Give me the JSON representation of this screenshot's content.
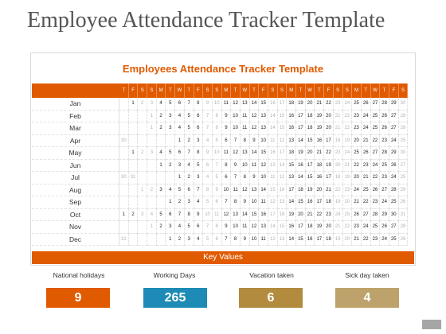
{
  "page": {
    "title": "Employee Attendance Tracker Template"
  },
  "card": {
    "title": "Employees Attendance Tracker Template",
    "key_label": "Key  Values"
  },
  "weekday_headers": [
    "S",
    "M",
    "T",
    "W",
    "T",
    "F",
    "S",
    "S",
    "M",
    "T",
    "W",
    "T",
    "F",
    "S",
    "S",
    "M",
    "T",
    "W",
    "T",
    "F",
    "S",
    "S",
    "M",
    "T",
    "W",
    "T",
    "F",
    "S",
    "S",
    "M",
    "T",
    "W",
    "T",
    "F",
    "S"
  ],
  "months": [
    {
      "name": "Jan",
      "start": 1,
      "days": [
        1,
        2,
        3,
        4,
        5,
        6,
        7,
        8,
        9,
        10,
        11,
        12,
        13,
        14,
        15,
        16,
        17,
        18,
        19,
        20,
        21,
        22,
        23,
        24,
        25,
        26,
        27,
        28,
        29,
        30,
        31
      ]
    },
    {
      "name": "Feb",
      "start": 3,
      "days": [
        1,
        2,
        3,
        4,
        5,
        6,
        7,
        8,
        9,
        10,
        11,
        12,
        13,
        14,
        15,
        16,
        17,
        18,
        19,
        20,
        21,
        22,
        23,
        24,
        25,
        26,
        27,
        28
      ]
    },
    {
      "name": "Mar",
      "start": 3,
      "days": [
        1,
        2,
        3,
        4,
        5,
        6,
        7,
        8,
        9,
        10,
        11,
        12,
        13,
        14,
        15,
        16,
        17,
        18,
        19,
        20,
        21,
        22,
        23,
        24,
        25,
        26,
        27,
        28,
        29,
        30,
        31
      ]
    },
    {
      "name": "Apr",
      "start": 6,
      "lead": [
        30
      ],
      "days": [
        1,
        2,
        3,
        4,
        5,
        6,
        7,
        8,
        9,
        10,
        11,
        12,
        13,
        14,
        15,
        16,
        17,
        18,
        19,
        20,
        21,
        22,
        23,
        24,
        25,
        26,
        27,
        28,
        29
      ]
    },
    {
      "name": "May",
      "start": 1,
      "days": [
        1,
        2,
        3,
        4,
        5,
        6,
        7,
        8,
        9,
        10,
        11,
        12,
        13,
        14,
        15,
        16,
        17,
        18,
        19,
        20,
        21,
        22,
        23,
        24,
        25,
        26,
        27,
        28,
        29,
        30,
        31
      ]
    },
    {
      "name": "Jun",
      "start": 4,
      "days": [
        1,
        2,
        3,
        4,
        5,
        6,
        7,
        8,
        9,
        10,
        11,
        12,
        13,
        14,
        15,
        16,
        17,
        18,
        19,
        20,
        21,
        22,
        23,
        24,
        25,
        26,
        27,
        28,
        29,
        30
      ]
    },
    {
      "name": "Jul",
      "start": 6,
      "lead": [
        30,
        31
      ],
      "days": [
        1,
        2,
        3,
        4,
        5,
        6,
        7,
        8,
        9,
        10,
        11,
        12,
        13,
        14,
        15,
        16,
        17,
        18,
        19,
        20,
        21,
        22,
        23,
        24,
        25,
        26,
        27,
        28,
        29
      ]
    },
    {
      "name": "Aug",
      "start": 2,
      "days": [
        1,
        2,
        3,
        4,
        5,
        6,
        7,
        8,
        9,
        10,
        11,
        12,
        13,
        14,
        15,
        16,
        17,
        18,
        19,
        20,
        21,
        22,
        23,
        24,
        25,
        26,
        27,
        28,
        29,
        30,
        31
      ]
    },
    {
      "name": "Sep",
      "start": 5,
      "days": [
        1,
        2,
        3,
        4,
        5,
        6,
        7,
        8,
        9,
        10,
        11,
        12,
        13,
        14,
        15,
        16,
        17,
        18,
        19,
        20,
        21,
        22,
        23,
        24,
        25,
        26,
        27,
        28,
        29,
        30
      ]
    },
    {
      "name": "Oct",
      "start": 0,
      "days": [
        1,
        2,
        3,
        4,
        5,
        6,
        7,
        8,
        9,
        10,
        11,
        12,
        13,
        14,
        15,
        16,
        17,
        18,
        19,
        20,
        21,
        22,
        23,
        24,
        25,
        26,
        27,
        28,
        29,
        30,
        31
      ]
    },
    {
      "name": "Nov",
      "start": 3,
      "days": [
        1,
        2,
        3,
        4,
        5,
        6,
        7,
        8,
        9,
        10,
        11,
        12,
        13,
        14,
        15,
        16,
        17,
        18,
        19,
        20,
        21,
        22,
        23,
        24,
        25,
        26,
        27,
        28,
        29,
        30
      ]
    },
    {
      "name": "Dec",
      "start": 5,
      "lead": [
        31
      ],
      "days": [
        1,
        2,
        3,
        4,
        5,
        6,
        7,
        8,
        9,
        10,
        11,
        12,
        13,
        14,
        15,
        16,
        17,
        18,
        19,
        20,
        21,
        22,
        23,
        24,
        25,
        26,
        27,
        28,
        29,
        30
      ]
    }
  ],
  "stats": [
    {
      "label": "National holidays",
      "value": "9",
      "color": "#e05a00"
    },
    {
      "label": "Working  Days",
      "value": "265",
      "color": "#1d8bb5"
    },
    {
      "label": "Vacation taken",
      "value": "6",
      "color": "#b38b3f"
    },
    {
      "label": "Sick day taken",
      "value": "4",
      "color": "#bda36b"
    }
  ],
  "colors": {
    "accent": "#e05a00",
    "faint": "#b3b3b3"
  }
}
